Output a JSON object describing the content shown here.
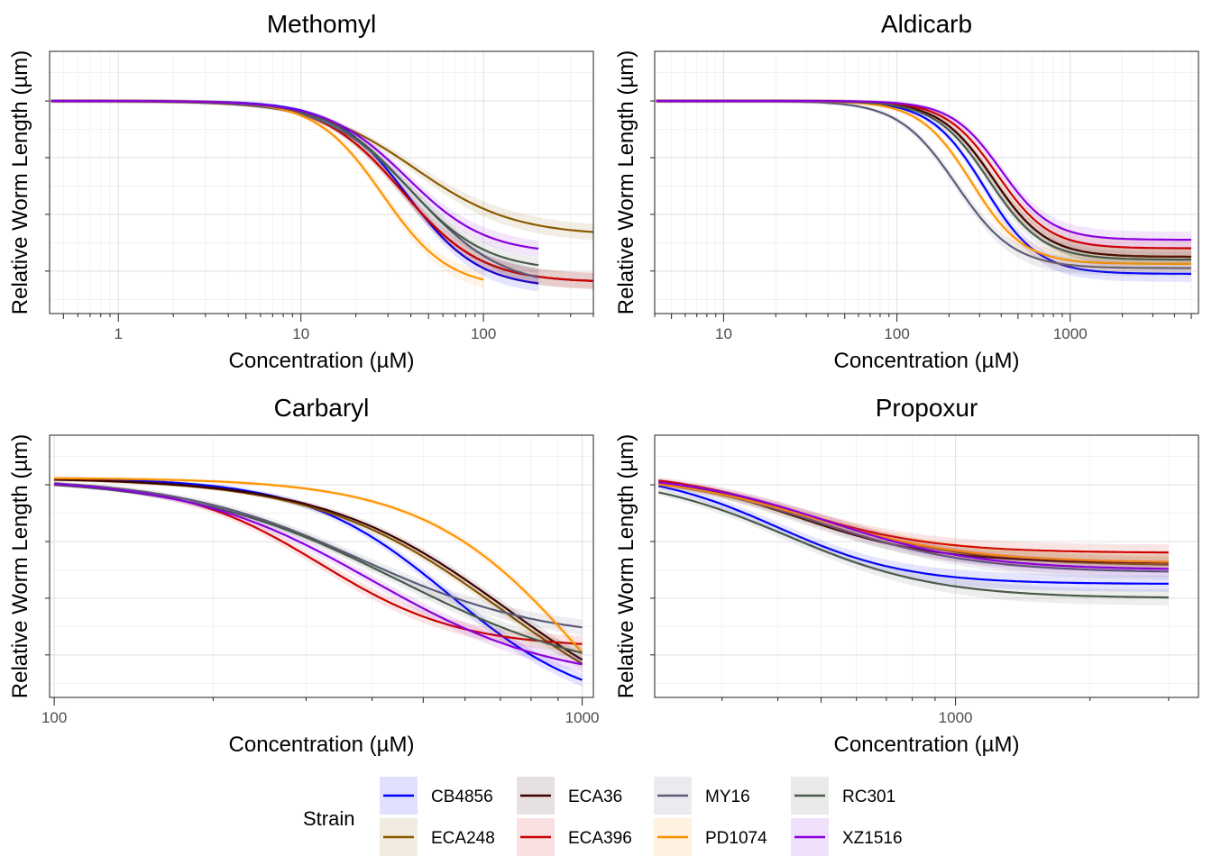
{
  "chart_data": [
    {
      "type": "line",
      "title": "Methomyl",
      "xlabel": "Concentration (µM)",
      "ylabel": "Relative Worm Length (µm)",
      "xscale": "log10",
      "xlim": [
        0.42,
        400
      ],
      "ylim": [
        -0.9,
        0.95
      ],
      "x_tick_labels": [
        "1",
        "10",
        "100"
      ],
      "x_tick_values": [
        1,
        10,
        100
      ],
      "y_tick_values": [
        0.6,
        0.2,
        -0.2,
        -0.6
      ],
      "series": [
        {
          "name": "CB4856",
          "x_max": 200,
          "start": 0.6,
          "end": -0.72,
          "ec50": 38,
          "hill": 2.2
        },
        {
          "name": "ECA248",
          "x_max": 400,
          "start": 0.6,
          "end": -0.35,
          "ec50": 42,
          "hill": 1.6
        },
        {
          "name": "ECA36",
          "x_max": 400,
          "start": 0.6,
          "end": -0.68,
          "ec50": 36,
          "hill": 2.0
        },
        {
          "name": "ECA396",
          "x_max": 400,
          "start": 0.6,
          "end": -0.68,
          "ec50": 36,
          "hill": 2.0
        },
        {
          "name": "MY16",
          "x_max": 200,
          "start": 0.6,
          "end": -0.72,
          "ec50": 42,
          "hill": 1.8
        },
        {
          "name": "PD1074",
          "x_max": 100,
          "start": 0.6,
          "end": -0.72,
          "ec50": 28,
          "hill": 2.4
        },
        {
          "name": "RC301",
          "x_max": 200,
          "start": 0.6,
          "end": -0.6,
          "ec50": 38,
          "hill": 2.0
        },
        {
          "name": "XZ1516",
          "x_max": 200,
          "start": 0.6,
          "end": -0.48,
          "ec50": 38,
          "hill": 2.0
        }
      ]
    },
    {
      "type": "line",
      "title": "Aldicarb",
      "xlabel": "Concentration (µM)",
      "ylabel": "Relative Worm Length (µm)",
      "xscale": "log10",
      "xlim": [
        4,
        5500
      ],
      "ylim": [
        -0.9,
        0.95
      ],
      "x_tick_labels": [
        "10",
        "100",
        "1000"
      ],
      "x_tick_values": [
        10,
        100,
        1000
      ],
      "y_tick_values": [
        0.6,
        0.2,
        -0.2,
        -0.6
      ],
      "series": [
        {
          "name": "CB4856",
          "x_max": 5000,
          "start": 0.6,
          "end": -0.62,
          "ec50": 320,
          "hill": 2.8
        },
        {
          "name": "ECA248",
          "x_max": 5000,
          "start": 0.6,
          "end": -0.5,
          "ec50": 360,
          "hill": 2.8
        },
        {
          "name": "ECA36",
          "x_max": 5000,
          "start": 0.6,
          "end": -0.5,
          "ec50": 360,
          "hill": 2.8
        },
        {
          "name": "ECA396",
          "x_max": 5000,
          "start": 0.6,
          "end": -0.44,
          "ec50": 380,
          "hill": 2.9
        },
        {
          "name": "MY16",
          "x_max": 5000,
          "start": 0.6,
          "end": -0.58,
          "ec50": 220,
          "hill": 2.6
        },
        {
          "name": "PD1074",
          "x_max": 5000,
          "start": 0.6,
          "end": -0.55,
          "ec50": 270,
          "hill": 2.9
        },
        {
          "name": "RC301",
          "x_max": 5000,
          "start": 0.6,
          "end": -0.52,
          "ec50": 340,
          "hill": 2.8
        },
        {
          "name": "XZ1516",
          "x_max": 5000,
          "start": 0.6,
          "end": -0.38,
          "ec50": 400,
          "hill": 3.0
        }
      ]
    },
    {
      "type": "line",
      "title": "Carbaryl",
      "xlabel": "Concentration (µM)",
      "ylabel": "Relative Worm Length (µm)",
      "xscale": "log10",
      "xlim": [
        98,
        1050
      ],
      "ylim": [
        -0.9,
        0.95
      ],
      "x_tick_labels": [
        "100",
        "1000"
      ],
      "x_tick_values": [
        100,
        1000
      ],
      "y_tick_values": [
        0.6,
        0.2,
        -0.2,
        -0.6
      ],
      "series": [
        {
          "name": "CB4856",
          "x_max": 1000,
          "start": 0.65,
          "end": -1.0,
          "ec50": 560,
          "hill": 3.2
        },
        {
          "name": "ECA248",
          "x_max": 1000,
          "start": 0.65,
          "end": -1.2,
          "ec50": 700,
          "hill": 2.5
        },
        {
          "name": "ECA36",
          "x_max": 1000,
          "start": 0.65,
          "end": -1.2,
          "ec50": 720,
          "hill": 2.5
        },
        {
          "name": "ECA396",
          "x_max": 1000,
          "start": 0.63,
          "end": -0.55,
          "ec50": 320,
          "hill": 3.3
        },
        {
          "name": "MY16",
          "x_max": 1000,
          "start": 0.65,
          "end": -0.5,
          "ec50": 380,
          "hill": 2.5
        },
        {
          "name": "PD1074",
          "x_max": 1000,
          "start": 0.65,
          "end": -2.0,
          "ec50": 1050,
          "hill": 2.8
        },
        {
          "name": "RC301",
          "x_max": 1000,
          "start": 0.65,
          "end": -0.8,
          "ec50": 450,
          "hill": 2.2
        },
        {
          "name": "XZ1516",
          "x_max": 1000,
          "start": 0.65,
          "end": -0.8,
          "ec50": 400,
          "hill": 2.5
        }
      ]
    },
    {
      "type": "line",
      "title": "Propoxur",
      "xlabel": "Concentration (µM)",
      "ylabel": "Relative Worm Length (µm)",
      "xscale": "log10",
      "xlim": [
        212,
        3500
      ],
      "ylim": [
        -0.9,
        0.95
      ],
      "x_tick_labels": [
        "1000"
      ],
      "x_tick_values": [
        1000
      ],
      "y_tick_values": [
        0.6,
        0.2,
        -0.2,
        -0.6
      ],
      "series": [
        {
          "name": "CB4856",
          "x_max": 3000,
          "start": 0.7,
          "end": -0.1,
          "ec50": 400,
          "hill": 3.0
        },
        {
          "name": "ECA248",
          "x_max": 3000,
          "start": 0.68,
          "end": 0.03,
          "ec50": 500,
          "hill": 2.5
        },
        {
          "name": "ECA36",
          "x_max": 3000,
          "start": 0.7,
          "end": 0.05,
          "ec50": 440,
          "hill": 2.8
        },
        {
          "name": "ECA396",
          "x_max": 3000,
          "start": 0.7,
          "end": 0.12,
          "ec50": 440,
          "hill": 2.8
        },
        {
          "name": "MY16",
          "x_max": 3000,
          "start": 0.68,
          "end": -0.02,
          "ec50": 500,
          "hill": 2.5
        },
        {
          "name": "PD1074",
          "x_max": 3000,
          "start": 0.68,
          "end": 0.05,
          "ec50": 480,
          "hill": 2.5
        },
        {
          "name": "RC301",
          "x_max": 3000,
          "start": 0.68,
          "end": -0.2,
          "ec50": 420,
          "hill": 2.6
        },
        {
          "name": "XZ1516",
          "x_max": 3000,
          "start": 0.68,
          "end": 0.0,
          "ec50": 520,
          "hill": 2.6
        }
      ]
    }
  ],
  "legend": {
    "title": "Strain",
    "placement": "bottom",
    "items": [
      {
        "name": "CB4856",
        "color": "#0000FF"
      },
      {
        "name": "ECA248",
        "color": "#8B5A00"
      },
      {
        "name": "ECA36",
        "color": "#3D0000"
      },
      {
        "name": "ECA396",
        "color": "#CD0000"
      },
      {
        "name": "MY16",
        "color": "#5C5C7A"
      },
      {
        "name": "PD1074",
        "color": "#FF9300"
      },
      {
        "name": "RC301",
        "color": "#4A5A4A"
      },
      {
        "name": "XZ1516",
        "color": "#8A00DD"
      }
    ]
  }
}
